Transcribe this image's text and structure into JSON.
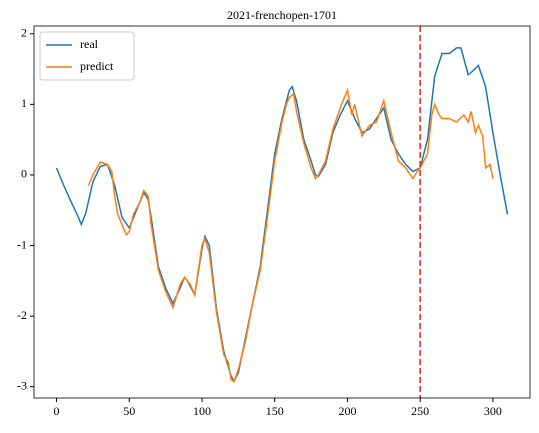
{
  "chart_data": {
    "type": "line",
    "title": "2021-frenchopen-1701",
    "xlim": [
      -15.5,
      325.5
    ],
    "xticks": [
      0,
      50,
      100,
      150,
      200,
      250,
      300
    ],
    "ylim": [
      -3.16,
      2.11
    ],
    "yticks": [
      -3,
      -2,
      -1,
      0,
      1,
      2
    ],
    "legend": "upper left",
    "grid": false,
    "vline": {
      "x": 250,
      "color": "#d62728",
      "style": "dashed"
    },
    "series": [
      {
        "name": "real",
        "color": "#1f77b4",
        "x": [
          0,
          5,
          10,
          15,
          17,
          20,
          25,
          30,
          35,
          40,
          45,
          50,
          55,
          60,
          63,
          65,
          70,
          75,
          80,
          85,
          88,
          90,
          95,
          100,
          102,
          105,
          110,
          115,
          120,
          122,
          125,
          130,
          135,
          140,
          145,
          150,
          155,
          160,
          162,
          165,
          170,
          175,
          178,
          180,
          185,
          190,
          195,
          200,
          205,
          210,
          215,
          220,
          225,
          230,
          235,
          240,
          245,
          250,
          255,
          260,
          265,
          270,
          275,
          278,
          280,
          283,
          285,
          290,
          295,
          300,
          305,
          310
        ],
        "values": [
          0.1,
          -0.15,
          -0.38,
          -0.6,
          -0.7,
          -0.55,
          -0.1,
          0.12,
          0.15,
          -0.15,
          -0.6,
          -0.75,
          -0.5,
          -0.25,
          -0.35,
          -0.6,
          -1.3,
          -1.6,
          -1.82,
          -1.6,
          -1.45,
          -1.5,
          -1.7,
          -1.05,
          -0.87,
          -1.0,
          -1.9,
          -2.5,
          -2.85,
          -2.92,
          -2.8,
          -2.3,
          -1.8,
          -1.3,
          -0.5,
          0.3,
          0.8,
          1.2,
          1.25,
          1.05,
          0.5,
          0.2,
          0.0,
          -0.02,
          0.15,
          0.6,
          0.85,
          1.05,
          0.8,
          0.6,
          0.65,
          0.8,
          0.95,
          0.5,
          0.3,
          0.15,
          0.05,
          0.1,
          0.5,
          1.4,
          1.72,
          1.72,
          1.8,
          1.8,
          1.65,
          1.42,
          1.45,
          1.55,
          1.25,
          0.6,
          0.0,
          -0.56
        ]
      },
      {
        "name": "predict",
        "color": "#ff7f0e",
        "x": [
          22,
          25,
          30,
          35,
          38,
          40,
          42,
          45,
          48,
          50,
          53,
          57,
          60,
          63,
          65,
          70,
          75,
          80,
          85,
          88,
          92,
          95,
          100,
          102,
          105,
          110,
          115,
          118,
          120,
          122,
          125,
          130,
          135,
          140,
          145,
          150,
          155,
          158,
          160,
          163,
          165,
          170,
          175,
          178,
          180,
          185,
          190,
          195,
          198,
          200,
          203,
          205,
          210,
          215,
          220,
          225,
          230,
          235,
          240,
          245,
          248,
          250,
          255,
          258,
          260,
          263,
          265,
          270,
          275,
          280,
          283,
          285,
          288,
          290,
          293,
          295,
          298,
          300
        ],
        "values": [
          -0.15,
          0.0,
          0.18,
          0.15,
          0.05,
          -0.3,
          -0.55,
          -0.7,
          -0.85,
          -0.8,
          -0.55,
          -0.4,
          -0.22,
          -0.3,
          -0.7,
          -1.35,
          -1.65,
          -1.88,
          -1.55,
          -1.45,
          -1.55,
          -1.7,
          -1.0,
          -0.9,
          -1.1,
          -1.95,
          -2.55,
          -2.65,
          -2.9,
          -2.93,
          -2.75,
          -2.35,
          -1.8,
          -1.35,
          -0.6,
          0.2,
          0.75,
          1.0,
          1.1,
          1.15,
          0.9,
          0.45,
          0.1,
          -0.05,
          0.0,
          0.2,
          0.65,
          0.95,
          1.1,
          1.2,
          0.85,
          1.0,
          0.55,
          0.7,
          0.75,
          1.05,
          0.6,
          0.2,
          0.1,
          -0.05,
          0.05,
          0.1,
          0.3,
          0.85,
          1.0,
          0.85,
          0.8,
          0.8,
          0.75,
          0.85,
          0.75,
          0.9,
          0.6,
          0.7,
          0.55,
          0.1,
          0.15,
          -0.05
        ]
      }
    ]
  }
}
